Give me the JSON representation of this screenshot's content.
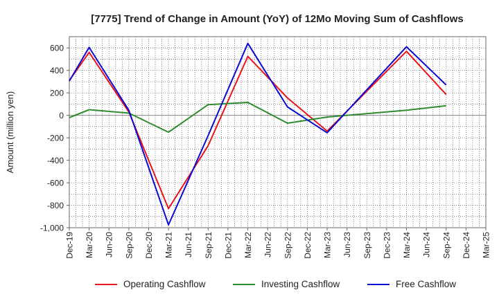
{
  "chart_data": {
    "type": "line",
    "title": "[7775]  Trend of Change in Amount (YoY) of 12Mo Moving Sum of Cashflows",
    "xlabel": "",
    "ylabel": "Amount (million yen)",
    "ylim": [
      -1000,
      700
    ],
    "yticks": [
      600,
      400,
      200,
      0,
      -200,
      -400,
      -600,
      -800,
      -1000
    ],
    "ytick_labels": [
      "600",
      "400",
      "200",
      "0",
      "-200",
      "-400",
      "-600",
      "-800",
      "-1,000"
    ],
    "categories": [
      "Dec-19",
      "Mar-20",
      "Jun-20",
      "Sep-20",
      "Dec-20",
      "Mar-21",
      "Jun-21",
      "Sep-21",
      "Dec-21",
      "Mar-22",
      "Jun-22",
      "Sep-22",
      "Dec-22",
      "Mar-23",
      "Jun-23",
      "Sep-23",
      "Dec-23",
      "Mar-24",
      "Jun-24",
      "Sep-24",
      "Dec-24",
      "Mar-25"
    ],
    "grid": true,
    "legend_position": "bottom",
    "series": [
      {
        "name": "Operating Cashflow",
        "color": "#e8141b",
        "values": [
          310,
          560,
          null,
          30,
          null,
          -830,
          null,
          -270,
          null,
          525,
          null,
          155,
          null,
          -140,
          null,
          null,
          null,
          570,
          null,
          185,
          null,
          null
        ]
      },
      {
        "name": "Investing Cashflow",
        "color": "#2e8b2e",
        "values": [
          -20,
          50,
          null,
          20,
          null,
          -150,
          null,
          95,
          null,
          115,
          null,
          -70,
          null,
          -15,
          null,
          null,
          null,
          45,
          null,
          85,
          null,
          null
        ]
      },
      {
        "name": "Free Cashflow",
        "color": "#0a0ad2",
        "values": [
          305,
          605,
          null,
          45,
          null,
          -975,
          null,
          -180,
          null,
          640,
          null,
          75,
          null,
          -155,
          null,
          null,
          null,
          610,
          null,
          270,
          null,
          null
        ]
      }
    ]
  }
}
